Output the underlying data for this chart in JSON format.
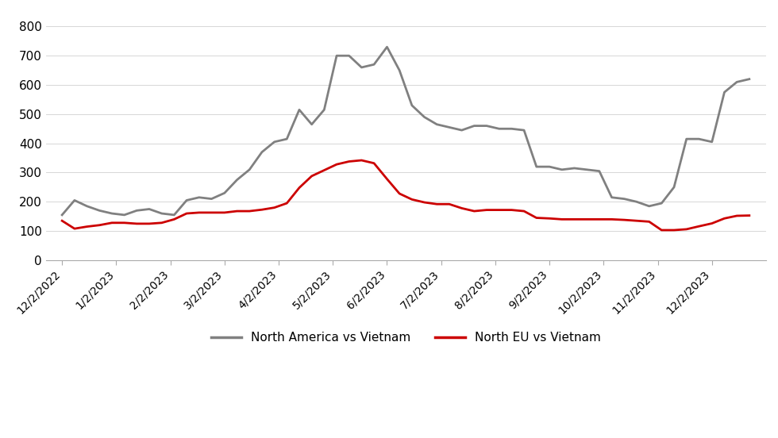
{
  "north_america_x": [
    0,
    0.23,
    0.46,
    0.69,
    0.92,
    1.15,
    1.38,
    1.61,
    1.84,
    2.07,
    2.3,
    2.53,
    2.76,
    3.0,
    3.23,
    3.46,
    3.69,
    3.92,
    4.15,
    4.38,
    4.61,
    4.84,
    5.07,
    5.3,
    5.53,
    5.76,
    6.0,
    6.23,
    6.46,
    6.69,
    6.92,
    7.15,
    7.38,
    7.61,
    7.84,
    8.07,
    8.3,
    8.53,
    8.76,
    9.0,
    9.23,
    9.46,
    9.69,
    9.92,
    10.15,
    10.38,
    10.61,
    10.84,
    11.07,
    11.3,
    11.53,
    11.76,
    12.0,
    12.23,
    12.46,
    12.69
  ],
  "north_america_y": [
    155,
    205,
    185,
    170,
    160,
    155,
    170,
    175,
    160,
    155,
    205,
    215,
    210,
    230,
    275,
    310,
    370,
    405,
    415,
    515,
    465,
    515,
    700,
    700,
    660,
    670,
    730,
    650,
    530,
    490,
    465,
    455,
    445,
    460,
    460,
    450,
    450,
    445,
    320,
    320,
    310,
    315,
    310,
    305,
    215,
    210,
    200,
    185,
    195,
    250,
    415,
    415,
    405,
    575,
    610,
    620
  ],
  "north_eu_x": [
    0,
    0.23,
    0.46,
    0.69,
    0.92,
    1.15,
    1.38,
    1.61,
    1.84,
    2.07,
    2.3,
    2.53,
    2.76,
    3.0,
    3.23,
    3.46,
    3.69,
    3.92,
    4.15,
    4.38,
    4.61,
    4.84,
    5.07,
    5.3,
    5.53,
    5.76,
    6.0,
    6.23,
    6.46,
    6.69,
    6.92,
    7.15,
    7.38,
    7.61,
    7.84,
    8.07,
    8.3,
    8.53,
    8.76,
    9.0,
    9.23,
    9.46,
    9.69,
    9.92,
    10.15,
    10.38,
    10.61,
    10.84,
    11.07,
    11.3,
    11.53,
    11.76,
    12.0,
    12.23,
    12.46,
    12.69
  ],
  "north_eu_y": [
    135,
    108,
    115,
    120,
    128,
    128,
    125,
    125,
    128,
    140,
    160,
    163,
    163,
    163,
    168,
    168,
    173,
    180,
    195,
    248,
    288,
    308,
    328,
    338,
    342,
    332,
    278,
    228,
    208,
    198,
    192,
    192,
    178,
    168,
    172,
    172,
    172,
    168,
    145,
    143,
    140,
    140,
    140,
    140,
    140,
    138,
    135,
    132,
    103,
    103,
    106,
    116,
    126,
    143,
    152,
    153
  ],
  "na_color": "#808080",
  "eu_color": "#cc0000",
  "na_label": "North America vs Vietnam",
  "eu_label": "North EU vs Vietnam",
  "yticks": [
    0,
    100,
    200,
    300,
    400,
    500,
    600,
    700,
    800
  ],
  "xtick_positions": [
    0,
    1,
    2,
    3,
    4,
    5,
    6,
    7,
    8,
    9,
    10,
    11,
    12
  ],
  "xtick_labels": [
    "12/2/2022",
    "1/2/2023",
    "2/2/2023",
    "3/2/2023",
    "4/2/2023",
    "5/2/2023",
    "6/2/2023",
    "7/2/2023",
    "8/2/2023",
    "9/2/2023",
    "10/2/2023",
    "11/2/2023",
    "12/2/2023"
  ],
  "background_color": "#ffffff",
  "ylim": [
    0,
    850
  ],
  "xlim": [
    -0.3,
    13.0
  ],
  "line_width": 2.0
}
